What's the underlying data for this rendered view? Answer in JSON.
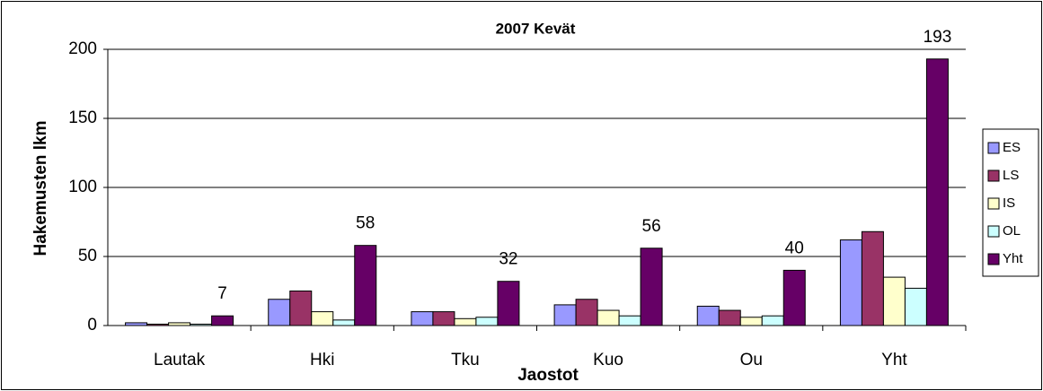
{
  "chart_data": {
    "type": "bar",
    "title": "2007 Kevät",
    "x_label": "Jaostot",
    "y_label": "Hakemusten lkm",
    "categories": [
      "Lautak",
      "Hki",
      "Tku",
      "Kuo",
      "Ou",
      "Yht"
    ],
    "series": [
      {
        "name": "ES",
        "color": "#9999ff",
        "values": [
          2,
          19,
          10,
          15,
          14,
          62
        ]
      },
      {
        "name": "LS",
        "color": "#993366",
        "values": [
          1,
          25,
          10,
          19,
          11,
          68
        ]
      },
      {
        "name": "IS",
        "color": "#ffffcc",
        "values": [
          2,
          10,
          5,
          11,
          6,
          35
        ]
      },
      {
        "name": "OL",
        "color": "#ccffff",
        "values": [
          1,
          4,
          6,
          7,
          7,
          27
        ]
      },
      {
        "name": "Yht",
        "color": "#660066",
        "values": [
          7,
          58,
          32,
          56,
          40,
          193
        ],
        "data_labels": true
      }
    ],
    "ylim": [
      0,
      200
    ],
    "yticks": [
      0,
      50,
      100,
      150,
      200
    ],
    "grid": true,
    "legend": "right"
  }
}
